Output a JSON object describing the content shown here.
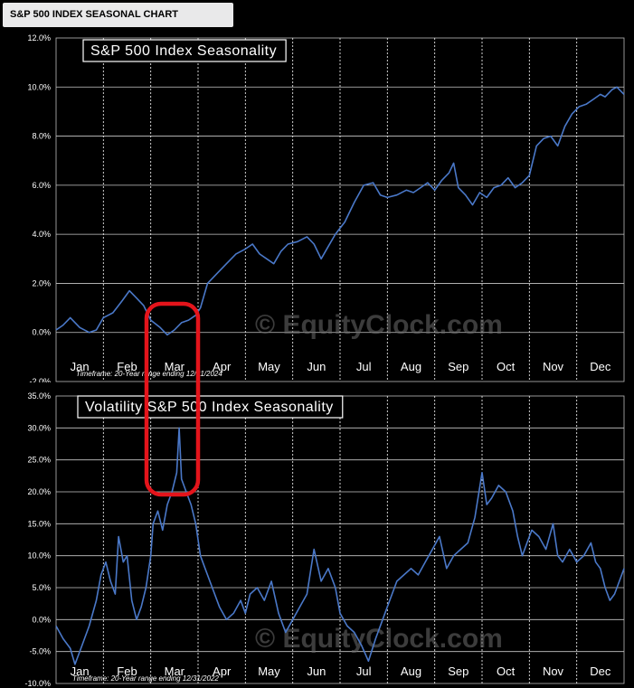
{
  "header": {
    "title": "S&P 500 INDEX SEASONAL CHART"
  },
  "watermark": "© EquityClock.com",
  "highlight_color": "#e4141b",
  "chart_data": [
    {
      "type": "line",
      "title": "S&P 500 Index Seasonality",
      "note": "Timeframe: 20-Year range ending 12/31/2024",
      "months": [
        "Jan",
        "Feb",
        "Mar",
        "Apr",
        "May",
        "Jun",
        "Jul",
        "Aug",
        "Sep",
        "Oct",
        "Nov",
        "Dec"
      ],
      "yticks": [
        "12.0%",
        "10.0%",
        "8.0%",
        "6.0%",
        "4.0%",
        "2.0%",
        "0.0%",
        "-2.0%"
      ],
      "ylim": [
        -2,
        12
      ],
      "line_color": "#4a78c8",
      "series": [
        {
          "values": [
            [
              0.0,
              0.1
            ],
            [
              0.15,
              0.3
            ],
            [
              0.3,
              0.6
            ],
            [
              0.5,
              0.2
            ],
            [
              0.7,
              0.0
            ],
            [
              0.85,
              0.1
            ],
            [
              1.0,
              0.6
            ],
            [
              1.2,
              0.8
            ],
            [
              1.4,
              1.3
            ],
            [
              1.55,
              1.7
            ],
            [
              1.7,
              1.4
            ],
            [
              1.85,
              1.1
            ],
            [
              2.0,
              0.5
            ],
            [
              2.2,
              0.2
            ],
            [
              2.35,
              -0.1
            ],
            [
              2.5,
              0.1
            ],
            [
              2.65,
              0.4
            ],
            [
              2.8,
              0.5
            ],
            [
              2.95,
              0.7
            ],
            [
              3.05,
              1.0
            ],
            [
              3.2,
              2.0
            ],
            [
              3.4,
              2.4
            ],
            [
              3.6,
              2.8
            ],
            [
              3.8,
              3.2
            ],
            [
              4.0,
              3.4
            ],
            [
              4.15,
              3.6
            ],
            [
              4.3,
              3.2
            ],
            [
              4.45,
              3.0
            ],
            [
              4.6,
              2.8
            ],
            [
              4.75,
              3.3
            ],
            [
              4.9,
              3.6
            ],
            [
              5.1,
              3.7
            ],
            [
              5.3,
              3.9
            ],
            [
              5.45,
              3.6
            ],
            [
              5.6,
              3.0
            ],
            [
              5.75,
              3.5
            ],
            [
              5.9,
              4.0
            ],
            [
              6.1,
              4.5
            ],
            [
              6.3,
              5.3
            ],
            [
              6.5,
              6.0
            ],
            [
              6.7,
              6.1
            ],
            [
              6.85,
              5.6
            ],
            [
              7.0,
              5.5
            ],
            [
              7.2,
              5.6
            ],
            [
              7.4,
              5.8
            ],
            [
              7.55,
              5.7
            ],
            [
              7.7,
              5.9
            ],
            [
              7.85,
              6.1
            ],
            [
              8.0,
              5.8
            ],
            [
              8.15,
              6.2
            ],
            [
              8.3,
              6.5
            ],
            [
              8.4,
              6.9
            ],
            [
              8.5,
              5.9
            ],
            [
              8.65,
              5.6
            ],
            [
              8.8,
              5.2
            ],
            [
              8.95,
              5.7
            ],
            [
              9.1,
              5.5
            ],
            [
              9.25,
              5.9
            ],
            [
              9.4,
              6.0
            ],
            [
              9.55,
              6.3
            ],
            [
              9.7,
              5.9
            ],
            [
              9.85,
              6.1
            ],
            [
              10.0,
              6.4
            ],
            [
              10.15,
              7.6
            ],
            [
              10.3,
              7.9
            ],
            [
              10.45,
              8.0
            ],
            [
              10.6,
              7.6
            ],
            [
              10.75,
              8.4
            ],
            [
              10.9,
              8.9
            ],
            [
              11.05,
              9.2
            ],
            [
              11.2,
              9.3
            ],
            [
              11.35,
              9.5
            ],
            [
              11.5,
              9.7
            ],
            [
              11.6,
              9.6
            ],
            [
              11.75,
              9.9
            ],
            [
              11.85,
              10.0
            ],
            [
              12.0,
              9.7
            ]
          ]
        }
      ]
    },
    {
      "type": "line",
      "title": "Volatility S&P 500 Index Seasonality",
      "note": "Timeframe: 20-Year range ending 12/31/2022",
      "months": [
        "Jan",
        "Feb",
        "Mar",
        "Apr",
        "May",
        "Jun",
        "Jul",
        "Aug",
        "Sep",
        "Oct",
        "Nov",
        "Dec"
      ],
      "yticks": [
        "35.0%",
        "30.0%",
        "25.0%",
        "20.0%",
        "15.0%",
        "10.0%",
        "5.0%",
        "0.0%",
        "-5.0%",
        "-10.0%"
      ],
      "ylim": [
        -10,
        35
      ],
      "line_color": "#4a78c8",
      "series": [
        {
          "values": [
            [
              0.0,
              -1.0
            ],
            [
              0.15,
              -3.0
            ],
            [
              0.3,
              -4.5
            ],
            [
              0.4,
              -7.0
            ],
            [
              0.55,
              -4.0
            ],
            [
              0.7,
              -1.0
            ],
            [
              0.85,
              3.0
            ],
            [
              0.95,
              7.0
            ],
            [
              1.05,
              9.0
            ],
            [
              1.15,
              6.0
            ],
            [
              1.25,
              4.0
            ],
            [
              1.32,
              13.0
            ],
            [
              1.42,
              9.0
            ],
            [
              1.5,
              10.0
            ],
            [
              1.6,
              3.0
            ],
            [
              1.7,
              0.0
            ],
            [
              1.8,
              2.0
            ],
            [
              1.9,
              5.0
            ],
            [
              2.0,
              10.0
            ],
            [
              2.05,
              15.0
            ],
            [
              2.15,
              17.0
            ],
            [
              2.25,
              14.0
            ],
            [
              2.35,
              18.0
            ],
            [
              2.45,
              20.0
            ],
            [
              2.55,
              23.0
            ],
            [
              2.6,
              30.0
            ],
            [
              2.65,
              22.0
            ],
            [
              2.75,
              20.0
            ],
            [
              2.85,
              18.0
            ],
            [
              2.95,
              15.0
            ],
            [
              3.05,
              10.0
            ],
            [
              3.15,
              8.0
            ],
            [
              3.3,
              5.0
            ],
            [
              3.45,
              2.0
            ],
            [
              3.6,
              0.0
            ],
            [
              3.75,
              1.0
            ],
            [
              3.9,
              3.0
            ],
            [
              4.0,
              1.0
            ],
            [
              4.1,
              4.0
            ],
            [
              4.25,
              5.0
            ],
            [
              4.4,
              3.0
            ],
            [
              4.55,
              6.0
            ],
            [
              4.7,
              1.0
            ],
            [
              4.85,
              -2.0
            ],
            [
              5.0,
              0.0
            ],
            [
              5.15,
              2.0
            ],
            [
              5.3,
              4.0
            ],
            [
              5.45,
              11.0
            ],
            [
              5.6,
              6.0
            ],
            [
              5.75,
              8.0
            ],
            [
              5.9,
              5.0
            ],
            [
              6.0,
              1.0
            ],
            [
              6.15,
              -1.0
            ],
            [
              6.3,
              -2.0
            ],
            [
              6.45,
              -4.0
            ],
            [
              6.6,
              -6.5
            ],
            [
              6.75,
              -3.0
            ],
            [
              6.9,
              0.0
            ],
            [
              7.05,
              3.0
            ],
            [
              7.2,
              6.0
            ],
            [
              7.35,
              7.0
            ],
            [
              7.5,
              8.0
            ],
            [
              7.65,
              7.0
            ],
            [
              7.8,
              9.0
            ],
            [
              7.95,
              11.0
            ],
            [
              8.1,
              13.0
            ],
            [
              8.25,
              8.0
            ],
            [
              8.4,
              10.0
            ],
            [
              8.55,
              11.0
            ],
            [
              8.7,
              12.0
            ],
            [
              8.85,
              16.0
            ],
            [
              9.0,
              23.0
            ],
            [
              9.1,
              18.0
            ],
            [
              9.2,
              19.0
            ],
            [
              9.35,
              21.0
            ],
            [
              9.5,
              20.0
            ],
            [
              9.65,
              17.0
            ],
            [
              9.75,
              13.0
            ],
            [
              9.85,
              10.0
            ],
            [
              9.95,
              12.0
            ],
            [
              10.05,
              14.0
            ],
            [
              10.2,
              13.0
            ],
            [
              10.35,
              11.0
            ],
            [
              10.5,
              15.0
            ],
            [
              10.6,
              10.0
            ],
            [
              10.7,
              9.0
            ],
            [
              10.85,
              11.0
            ],
            [
              11.0,
              9.0
            ],
            [
              11.15,
              10.0
            ],
            [
              11.3,
              12.0
            ],
            [
              11.4,
              9.0
            ],
            [
              11.5,
              8.0
            ],
            [
              11.6,
              5.0
            ],
            [
              11.7,
              3.0
            ],
            [
              11.8,
              4.0
            ],
            [
              11.9,
              6.0
            ],
            [
              12.0,
              8.0
            ]
          ]
        }
      ]
    }
  ]
}
